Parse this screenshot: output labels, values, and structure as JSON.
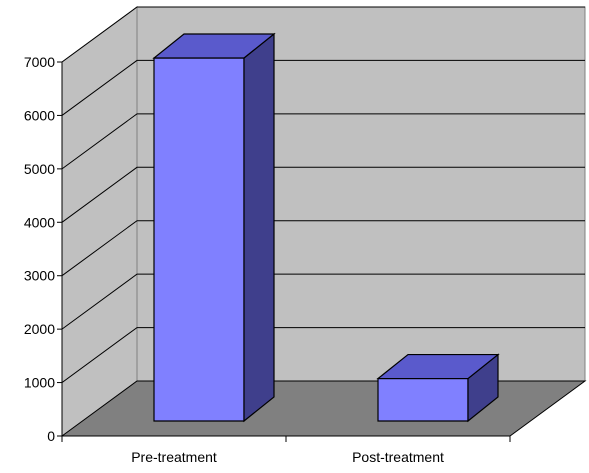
{
  "chart_data": {
    "type": "bar",
    "style": "3d-column",
    "categories": [
      "Pre-treatment",
      "Post-treatment"
    ],
    "values": [
      7000,
      1000
    ],
    "ylim": [
      0,
      7000
    ],
    "yticks": [
      0,
      1000,
      2000,
      3000,
      4000,
      5000,
      6000,
      7000
    ],
    "title": "",
    "xlabel": "",
    "ylabel": "",
    "grid": true,
    "legend": "none",
    "colors": {
      "bar_front": "#8080ff",
      "bar_side": "#3f3f8c",
      "bar_top": "#5a5acc",
      "wall": "#c0c0c0",
      "floor": "#808080",
      "grid": "#000000"
    }
  }
}
